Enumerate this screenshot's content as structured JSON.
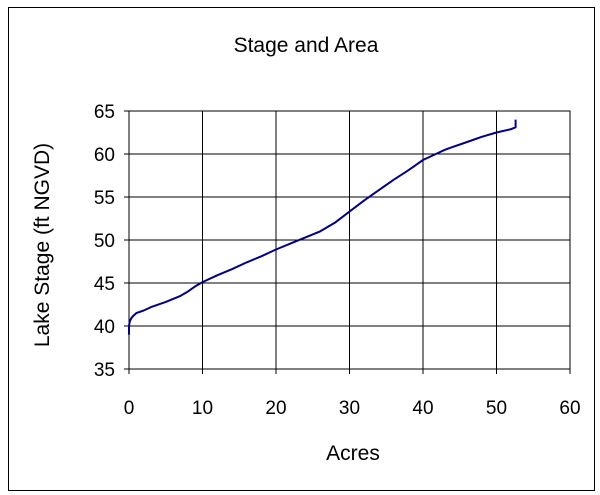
{
  "chart_data": {
    "type": "line",
    "title": "Stage and Area",
    "xlabel": "Acres",
    "ylabel": "Lake Stage (ft NGVD)",
    "xlim": [
      0,
      60
    ],
    "ylim": [
      35,
      65
    ],
    "xticks": [
      0,
      10,
      20,
      30,
      40,
      50,
      60
    ],
    "yticks": [
      35,
      40,
      45,
      50,
      55,
      60,
      65
    ],
    "grid": true,
    "legend": "none",
    "line_color": "#000080",
    "series": [
      {
        "x": [
          0,
          0,
          0.1,
          0.3,
          0.6,
          1,
          2,
          3,
          5,
          7,
          8,
          9,
          10,
          12,
          14,
          16,
          18,
          20,
          22,
          24,
          26,
          28,
          30,
          32,
          34,
          36,
          38,
          40,
          42,
          43,
          44,
          46,
          48,
          50,
          52,
          52.6,
          52.6
        ],
        "y": [
          39,
          40,
          40.5,
          40.9,
          41.2,
          41.5,
          41.8,
          42.2,
          42.8,
          43.5,
          44.0,
          44.6,
          45.1,
          45.9,
          46.6,
          47.4,
          48.1,
          48.9,
          49.6,
          50.3,
          51.0,
          52.0,
          53.3,
          54.6,
          55.8,
          57.0,
          58.1,
          59.3,
          60.1,
          60.5,
          60.8,
          61.4,
          62.0,
          62.5,
          62.9,
          63.1,
          64.0
        ]
      }
    ]
  }
}
